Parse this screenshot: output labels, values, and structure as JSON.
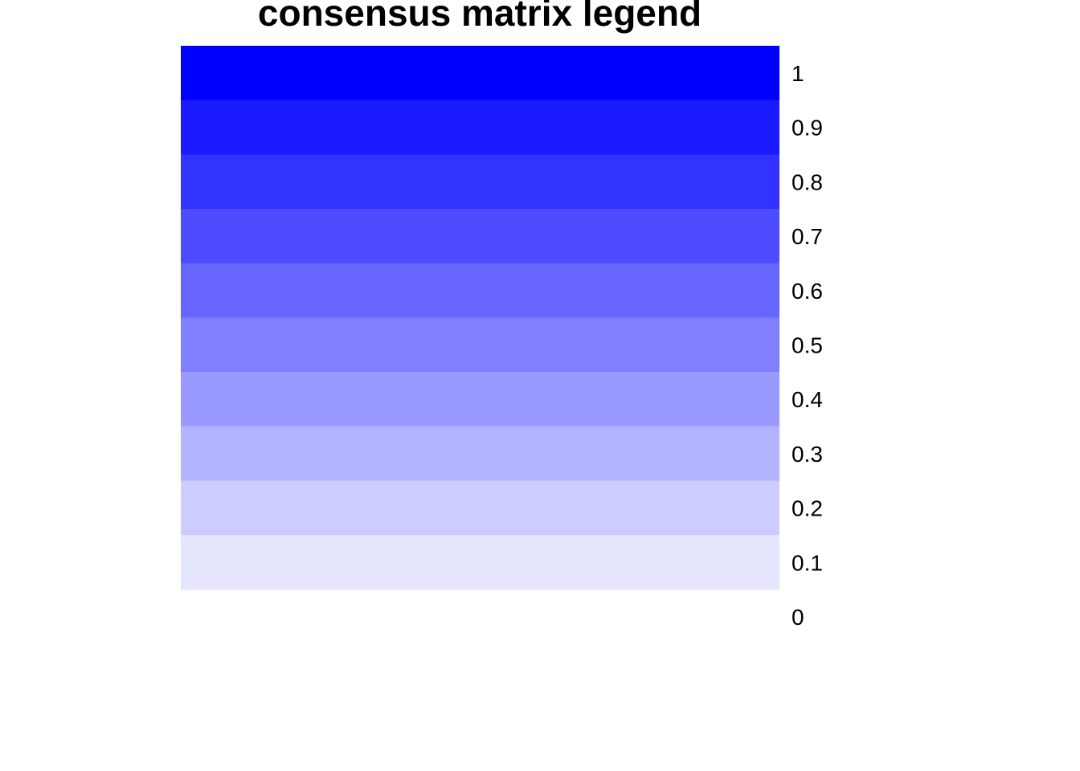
{
  "chart_data": {
    "type": "heatmap",
    "title": "consensus matrix legend",
    "xlabel": "",
    "ylabel": "",
    "grid": false,
    "legend": "none",
    "ylim": [
      0,
      1
    ],
    "bins": [
      {
        "from": 0.9,
        "to": 1.0,
        "color": "#0000FF"
      },
      {
        "from": 0.8,
        "to": 0.9,
        "color": "#1A1AFF"
      },
      {
        "from": 0.7,
        "to": 0.8,
        "color": "#3333FF"
      },
      {
        "from": 0.6,
        "to": 0.7,
        "color": "#4D4DFF"
      },
      {
        "from": 0.5,
        "to": 0.6,
        "color": "#6666FF"
      },
      {
        "from": 0.4,
        "to": 0.5,
        "color": "#8080FF"
      },
      {
        "from": 0.3,
        "to": 0.4,
        "color": "#9999FF"
      },
      {
        "from": 0.2,
        "to": 0.3,
        "color": "#B3B3FF"
      },
      {
        "from": 0.1,
        "to": 0.2,
        "color": "#CCCCFF"
      },
      {
        "from": 0.0,
        "to": 0.1,
        "color": "#E6E6FF"
      }
    ],
    "tick_labels": [
      "1",
      "0.9",
      "0.8",
      "0.7",
      "0.6",
      "0.5",
      "0.4",
      "0.3",
      "0.2",
      "0.1",
      "0"
    ]
  }
}
